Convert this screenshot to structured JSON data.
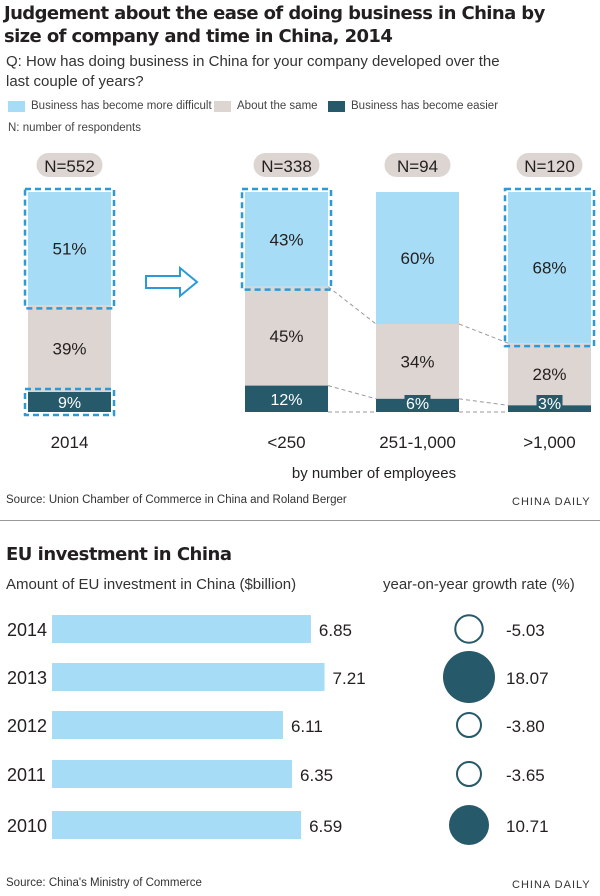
{
  "chart_data": [
    {
      "type": "bar",
      "title": "Judgement about the ease of doing business in China by size of company and time in China, 2014",
      "question": "Q: How has doing business in China for your company developed over the last couple of years?",
      "n_note": "N: number of respondents",
      "xlabel": "by number of employees",
      "categories": [
        "2014",
        "<250",
        "251-1,000",
        ">1,000"
      ],
      "n_labels": [
        "N=552",
        "N=338",
        "N=94",
        "N=120"
      ],
      "series": [
        {
          "name": "Business has become more difficult",
          "values": [
            51,
            43,
            60,
            68
          ],
          "labels": [
            "51%",
            "43%",
            "60%",
            "68%"
          ]
        },
        {
          "name": "About the same",
          "values": [
            39,
            45,
            34,
            28
          ],
          "labels": [
            "39%",
            "45%",
            "34%",
            "28%"
          ]
        },
        {
          "name": "Business has become easier",
          "values": [
            9,
            12,
            6,
            3
          ],
          "labels": [
            "9%",
            "12%",
            "6%",
            "3%"
          ]
        }
      ],
      "colors": {
        "difficult": "#a6dcf5",
        "same": "#ddd5d1",
        "easier": "#265969",
        "highlight": "#2b9bd8"
      },
      "source": "Source: Union Chamber of Commerce in China and Roland Berger",
      "brand": "CHINA DAILY"
    },
    {
      "type": "bar",
      "title": "EU investment in China",
      "ylabel": "Amount of EU investment in China ($billion)",
      "growth_label": "year-on-year growth rate (%)",
      "categories": [
        "2014",
        "2013",
        "2012",
        "2011",
        "2010"
      ],
      "values": [
        6.85,
        7.21,
        6.11,
        6.35,
        6.59
      ],
      "value_labels": [
        "6.85",
        "7.21",
        "6.11",
        "6.35",
        "6.59"
      ],
      "growth": [
        -5.03,
        18.07,
        -3.8,
        -3.65,
        10.71
      ],
      "growth_labels": [
        "-5.03",
        "18.07",
        "-3.80",
        "-3.65",
        "10.71"
      ],
      "colors": {
        "bar": "#a6dcf5",
        "positive": "#265969",
        "negative_outline": "#265969"
      },
      "source": "Source: China's Ministry of Commerce",
      "brand": "CHINA DAILY"
    }
  ]
}
